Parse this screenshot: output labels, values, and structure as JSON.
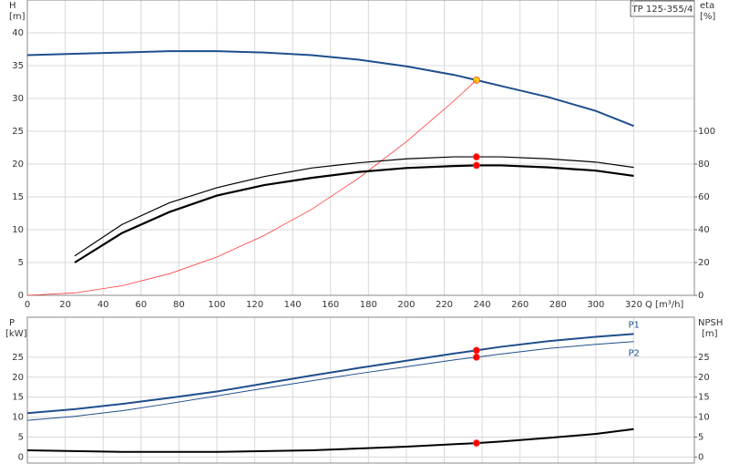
{
  "chart_data": [
    {
      "type": "line",
      "title": "TP 125-355/4",
      "ylabel": "H",
      "yunit": "[m]",
      "y2label": "eta",
      "y2unit": "[%]",
      "xlabel": "Q [m³/h]",
      "xlim": [
        0,
        352
      ],
      "xticks": [
        0,
        20,
        40,
        60,
        80,
        100,
        120,
        140,
        160,
        180,
        200,
        220,
        240,
        260,
        280,
        300,
        320
      ],
      "ylim": [
        0,
        45
      ],
      "yticks": [
        0,
        5,
        10,
        15,
        20,
        25,
        30,
        35,
        40
      ],
      "y2lim": [
        0,
        180
      ],
      "y2ticks": [
        0,
        20,
        40,
        60,
        80,
        100
      ],
      "grid": true,
      "duty_point": 237,
      "series": [
        {
          "color": "#1f4e8c",
          "width": 2,
          "marker_color": "#ffd700",
          "x": [
            0,
            25,
            50,
            75,
            100,
            125,
            150,
            175,
            200,
            225,
            237,
            250,
            275,
            300,
            320
          ],
          "values": [
            36.6,
            36.8,
            37.0,
            37.2,
            37.2,
            37.0,
            36.6,
            35.9,
            34.9,
            33.6,
            32.8,
            31.9,
            30.2,
            28.1,
            25.8
          ]
        },
        {
          "color": "#ff3b3b",
          "width": 0.8,
          "x": [
            0,
            25,
            50,
            75,
            100,
            125,
            150,
            175,
            200,
            225,
            237
          ],
          "values": [
            0,
            0.37,
            1.46,
            3.29,
            5.84,
            9.13,
            13.1,
            17.9,
            23.4,
            29.6,
            32.8
          ]
        },
        {
          "color": "#000000",
          "width": 1.2,
          "axis": "y2",
          "marker_color": "#ff0000",
          "x": [
            25,
            50,
            75,
            100,
            125,
            150,
            175,
            200,
            225,
            237,
            250,
            275,
            300,
            320
          ],
          "values": [
            24,
            43.2,
            56.4,
            65.6,
            72.4,
            77.6,
            80.8,
            83.2,
            84.4,
            84.4,
            84.4,
            83.2,
            81.2,
            78
          ]
        },
        {
          "color": "#000000",
          "width": 2.2,
          "axis": "y2",
          "marker_color": "#ff0000",
          "x": [
            25,
            50,
            75,
            100,
            125,
            150,
            175,
            200,
            225,
            237,
            250,
            275,
            300,
            320
          ],
          "values": [
            20,
            38,
            50.8,
            60.8,
            67.2,
            71.6,
            75.2,
            77.6,
            78.8,
            79.2,
            79.2,
            78,
            76,
            72.8
          ]
        }
      ]
    },
    {
      "type": "line",
      "ylabel": "P",
      "yunit": "[kW]",
      "y2label": "NPSH",
      "y2unit": "[m]",
      "xlim": [
        0,
        352
      ],
      "xticks": [
        0,
        20,
        40,
        60,
        80,
        100,
        120,
        140,
        160,
        180,
        200,
        220,
        240,
        260,
        280,
        300,
        320
      ],
      "ylim": [
        -1.5,
        35
      ],
      "yticks": [
        0,
        5,
        10,
        15,
        20,
        25
      ],
      "y2lim": [
        -1.5,
        35
      ],
      "y2ticks": [
        0,
        5,
        10,
        15,
        20,
        25
      ],
      "grid": true,
      "duty_point": 237,
      "series": [
        {
          "name": "P1",
          "color": "#1f4e8c",
          "width": 2,
          "marker_color": "#ff0000",
          "x": [
            0,
            25,
            50,
            75,
            100,
            125,
            150,
            175,
            200,
            225,
            237,
            250,
            275,
            300,
            320
          ],
          "values": [
            11,
            12,
            13.3,
            14.8,
            16.4,
            18.4,
            20.4,
            22.3,
            24.1,
            25.9,
            26.7,
            27.6,
            29.0,
            30.1,
            30.8
          ]
        },
        {
          "name": "P2",
          "color": "#1f4e8c",
          "width": 1,
          "marker_color": "#ff0000",
          "x": [
            0,
            25,
            50,
            75,
            100,
            125,
            150,
            175,
            200,
            225,
            237,
            250,
            275,
            300,
            320
          ],
          "values": [
            9.2,
            10.2,
            11.6,
            13.4,
            15.3,
            17.2,
            19.1,
            20.9,
            22.6,
            24.3,
            25.0,
            25.8,
            27.2,
            28.2,
            28.9
          ]
        },
        {
          "color": "#000000",
          "width": 2,
          "axis": "y2",
          "marker_color": "#ff0000",
          "x": [
            0,
            25,
            50,
            100,
            150,
            200,
            237,
            250,
            275,
            300,
            320
          ],
          "values": [
            1.7,
            1.5,
            1.3,
            1.3,
            1.7,
            2.6,
            3.5,
            3.9,
            4.8,
            5.8,
            7.0
          ]
        }
      ]
    }
  ]
}
